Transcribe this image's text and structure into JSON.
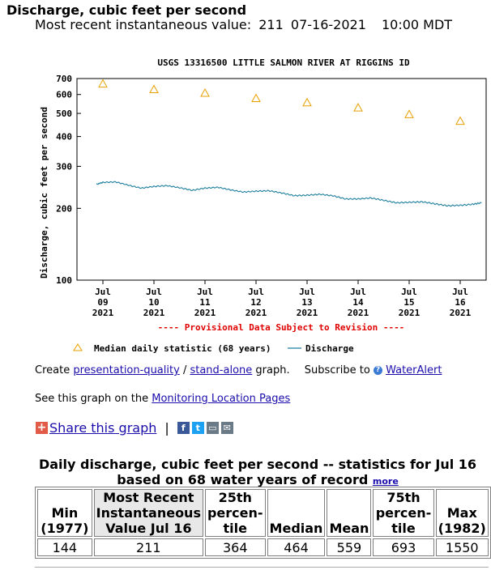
{
  "header": {
    "title": "Discharge, cubic feet per second",
    "recent_label": "Most recent instantaneous value:",
    "recent_value": "211",
    "recent_date": "07-16-2021",
    "recent_time": "10:00 MDT"
  },
  "chart_data": {
    "type": "line",
    "title": "USGS 13316500 LITTLE SALMON RIVER AT RIGGINS ID",
    "ylabel": "Discharge, cubic feet per second",
    "xlabel": "",
    "yscale": "log",
    "ylim": [
      100,
      700
    ],
    "yticks": [
      100,
      200,
      300,
      400,
      500,
      600,
      700
    ],
    "xlim": [
      "2021-07-09 00:00",
      "2021-07-16 15:00"
    ],
    "xticks": [
      [
        "Jul",
        "09",
        "2021"
      ],
      [
        "Jul",
        "10",
        "2021"
      ],
      [
        "Jul",
        "11",
        "2021"
      ],
      [
        "Jul",
        "12",
        "2021"
      ],
      [
        "Jul",
        "13",
        "2021"
      ],
      [
        "Jul",
        "14",
        "2021"
      ],
      [
        "Jul",
        "15",
        "2021"
      ],
      [
        "Jul",
        "16",
        "2021"
      ]
    ],
    "grid": false,
    "provisional_note": "---- Provisional Data Subject to Revision ----",
    "legend": {
      "position": "bottom"
    },
    "series": [
      {
        "name": "Median daily statistic (68 years)",
        "kind": "marker-triangle",
        "color": "#e8a000",
        "x": [
          "2021-07-09",
          "2021-07-10",
          "2021-07-11",
          "2021-07-12",
          "2021-07-13",
          "2021-07-14",
          "2021-07-15",
          "2021-07-16"
        ],
        "values": [
          665,
          630,
          608,
          578,
          555,
          528,
          495,
          464
        ]
      },
      {
        "name": "Discharge",
        "kind": "line",
        "color": "#1e7f9e",
        "x": [
          "2021-07-08 21:00",
          "2021-07-09 00:00",
          "2021-07-09 06:00",
          "2021-07-09 12:00",
          "2021-07-09 18:00",
          "2021-07-10 00:00",
          "2021-07-10 06:00",
          "2021-07-10 12:00",
          "2021-07-10 18:00",
          "2021-07-11 00:00",
          "2021-07-11 06:00",
          "2021-07-11 12:00",
          "2021-07-11 18:00",
          "2021-07-12 00:00",
          "2021-07-12 06:00",
          "2021-07-12 12:00",
          "2021-07-12 18:00",
          "2021-07-13 00:00",
          "2021-07-13 06:00",
          "2021-07-13 12:00",
          "2021-07-13 18:00",
          "2021-07-14 00:00",
          "2021-07-14 06:00",
          "2021-07-14 12:00",
          "2021-07-14 18:00",
          "2021-07-15 00:00",
          "2021-07-15 06:00",
          "2021-07-15 12:00",
          "2021-07-15 18:00",
          "2021-07-16 00:00",
          "2021-07-16 06:00",
          "2021-07-16 10:00"
        ],
        "values": [
          252,
          257,
          258,
          250,
          243,
          247,
          249,
          244,
          238,
          243,
          245,
          239,
          234,
          236,
          237,
          232,
          226,
          227,
          229,
          226,
          219,
          219,
          221,
          216,
          211,
          212,
          213,
          209,
          205,
          206,
          208,
          211
        ]
      }
    ]
  },
  "links": {
    "create_prefix": "Create",
    "presentation": "presentation-quality",
    "slash": "/",
    "standalone": "stand-alone",
    "graph_suffix": "graph.",
    "subscribe": "Subscribe to",
    "wateralert": "WaterAlert",
    "see_prefix": "See this graph on the",
    "monitoring": "Monitoring Location Pages"
  },
  "share": {
    "label": "Share this graph",
    "sep": "|"
  },
  "stats": {
    "title_line1": "Daily discharge, cubic feet per second -- statistics for Jul 16",
    "title_line2": "based on 68 water years of record",
    "more": "more",
    "headers": [
      [
        "Min",
        "(1977)"
      ],
      [
        "Most Recent",
        "Instantaneous",
        "Value Jul 16"
      ],
      [
        "25th",
        "percen-",
        "tile"
      ],
      [
        "Median"
      ],
      [
        "Mean"
      ],
      [
        "75th",
        "percen-",
        "tile"
      ],
      [
        "Max",
        "(1982)"
      ]
    ],
    "values": [
      "144",
      "211",
      "364",
      "464",
      "559",
      "693",
      "1550"
    ]
  }
}
